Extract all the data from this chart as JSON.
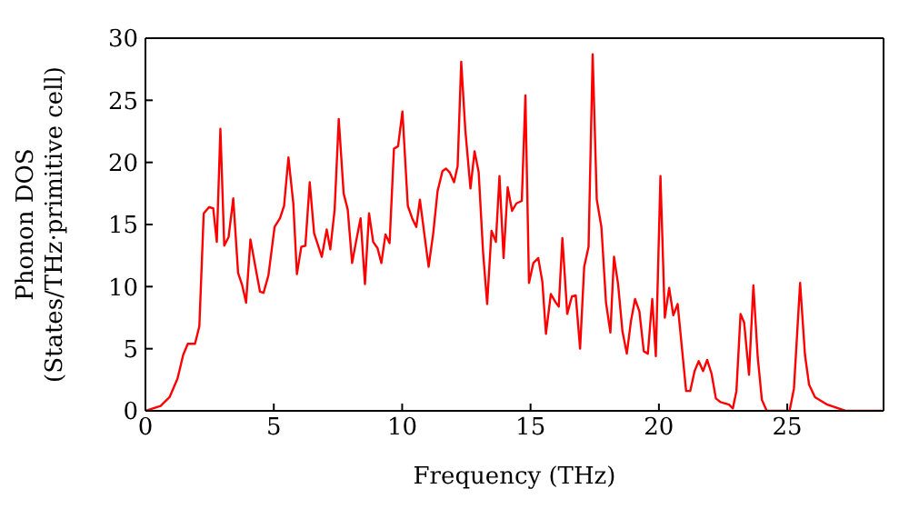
{
  "chart_data": {
    "type": "line",
    "xlabel": "Frequency (THz)",
    "ylabel": "Phonon DOS\n(States/THz·primitive cell)",
    "xlim": [
      0,
      28.75
    ],
    "xticks": [
      0,
      5,
      10,
      15,
      20,
      25
    ],
    "ylim": [
      0,
      30
    ],
    "yticks": [
      0,
      5,
      10,
      15,
      20,
      25,
      30
    ],
    "marker": "none",
    "line_style": "solid",
    "series": [
      {
        "color": "#ff0000",
        "x": [
          0,
          0.59,
          0.94,
          1.25,
          1.47,
          1.65,
          1.93,
          2.1,
          2.27,
          2.48,
          2.64,
          2.78,
          2.92,
          3.07,
          3.24,
          3.42,
          3.61,
          3.77,
          3.92,
          4.09,
          4.3,
          4.46,
          4.6,
          4.79,
          5.03,
          5.24,
          5.4,
          5.57,
          5.76,
          5.9,
          6.07,
          6.23,
          6.4,
          6.57,
          6.87,
          7.06,
          7.2,
          7.37,
          7.53,
          7.72,
          7.88,
          8.05,
          8.22,
          8.38,
          8.55,
          8.71,
          8.87,
          9.04,
          9.19,
          9.35,
          9.51,
          9.68,
          9.84,
          10.01,
          10.22,
          10.39,
          10.55,
          10.69,
          10.86,
          11.03,
          11.21,
          11.38,
          11.57,
          11.71,
          11.85,
          12.02,
          12.16,
          12.3,
          12.46,
          12.66,
          12.82,
          12.98,
          13.15,
          13.31,
          13.48,
          13.65,
          13.79,
          13.95,
          14.11,
          14.28,
          14.45,
          14.66,
          14.8,
          14.94,
          15.11,
          15.3,
          15.46,
          15.6,
          15.79,
          15.99,
          16.1,
          16.24,
          16.43,
          16.61,
          16.76,
          16.93,
          17.09,
          17.26,
          17.42,
          17.58,
          17.76,
          17.94,
          18.11,
          18.25,
          18.41,
          18.58,
          18.75,
          18.91,
          19.07,
          19.24,
          19.41,
          19.57,
          19.74,
          19.88,
          20.06,
          20.23,
          20.4,
          20.56,
          20.73,
          20.89,
          21.06,
          21.22,
          21.39,
          21.55,
          21.72,
          21.88,
          22.05,
          22.22,
          22.4,
          22.73,
          22.88,
          23.02,
          23.18,
          23.32,
          23.51,
          23.68,
          23.85,
          24.01,
          24.2,
          25.09,
          25.26,
          25.5,
          25.69,
          25.85,
          26.08,
          26.56,
          27.27,
          28.68
        ],
        "values": [
          0,
          0.4,
          1.1,
          2.6,
          4.5,
          5.4,
          5.4,
          6.8,
          15.9,
          16.4,
          16.3,
          13.6,
          22.7,
          13.3,
          14,
          17.1,
          11.1,
          10.1,
          8.7,
          13.8,
          11.4,
          9.6,
          9.5,
          10.9,
          14.8,
          15.5,
          16.5,
          20.4,
          16.7,
          11,
          13.2,
          13.3,
          18.4,
          14.3,
          12.4,
          14.6,
          13,
          16.2,
          23.5,
          17.5,
          16.2,
          11.9,
          13.8,
          15.5,
          10.2,
          15.9,
          13.6,
          13.1,
          11.9,
          14.2,
          13.5,
          21.1,
          21.3,
          24.1,
          16.5,
          15.5,
          14.8,
          17,
          14.3,
          11.6,
          14.3,
          17.7,
          19.3,
          19.5,
          19.2,
          18.4,
          19.7,
          28.1,
          22.6,
          17.9,
          20.9,
          19.2,
          12.8,
          8.6,
          14.5,
          13.6,
          18.9,
          12.3,
          18,
          16.1,
          16.7,
          16.9,
          25.4,
          10.3,
          11.9,
          12.3,
          10.4,
          6.2,
          9.4,
          8.7,
          8.4,
          13.9,
          7.8,
          9.2,
          9.3,
          5,
          11.6,
          13.2,
          28.7,
          17,
          14.8,
          8.7,
          6.3,
          12.4,
          10.2,
          6.4,
          4.6,
          7.2,
          9,
          8,
          4.8,
          4.6,
          9,
          4.4,
          18.9,
          7.5,
          9.9,
          7.7,
          8.6,
          5.2,
          1.6,
          1.6,
          3.2,
          4,
          3.2,
          4.1,
          3,
          1,
          0.7,
          0.5,
          0.2,
          1.6,
          7.8,
          7.1,
          2.9,
          10.1,
          4.3,
          0.9,
          0,
          0,
          1.8,
          10.3,
          4.5,
          2.1,
          1.1,
          0.5,
          0,
          0
        ]
      }
    ]
  }
}
